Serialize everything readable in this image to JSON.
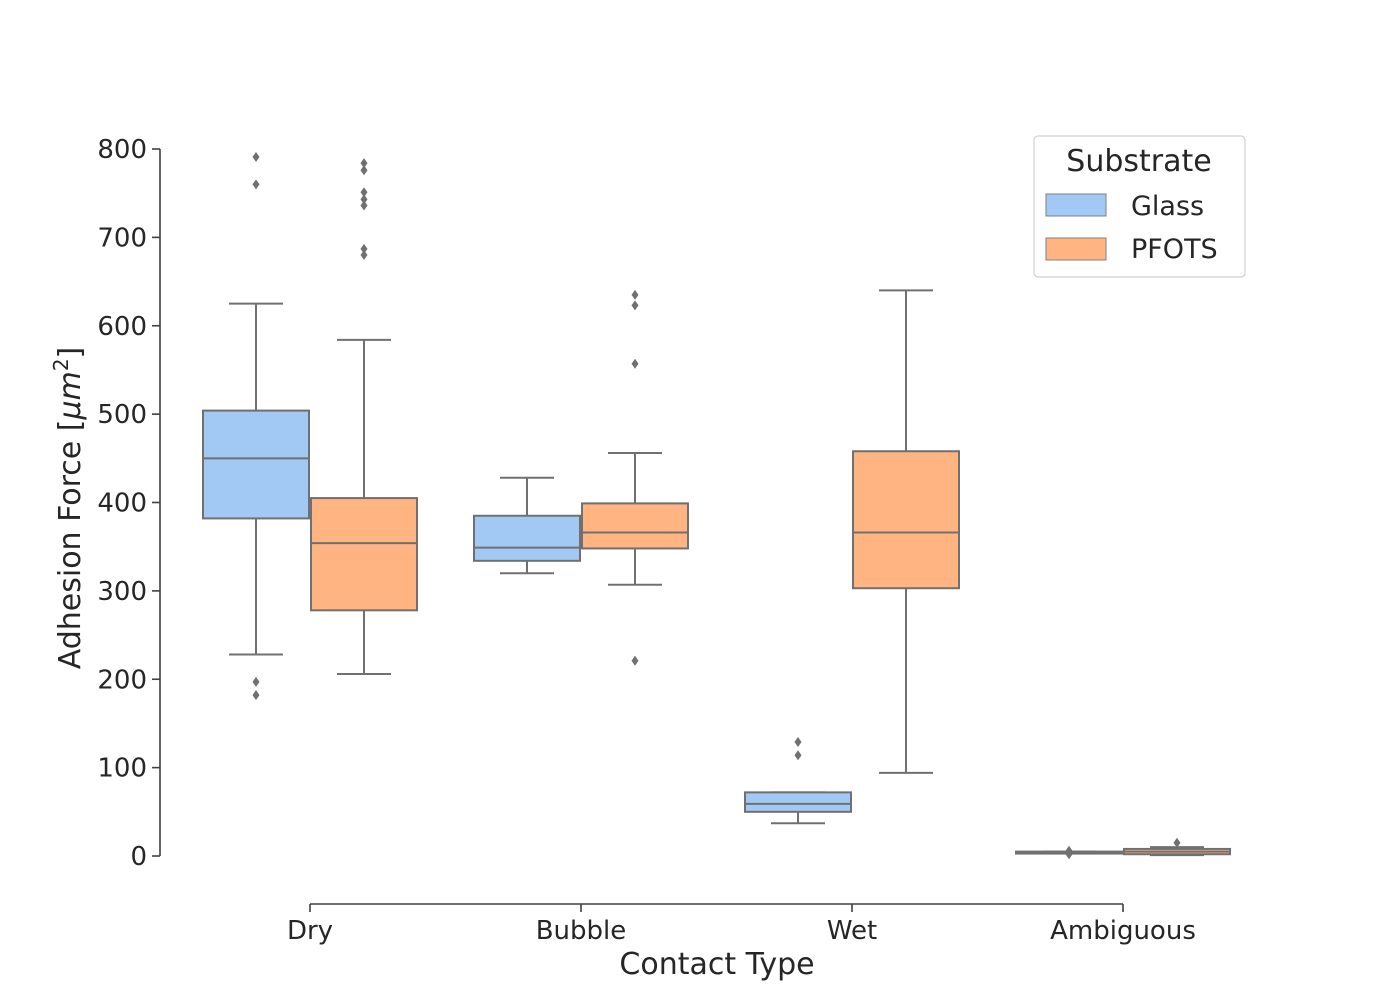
{
  "chart_data": {
    "type": "box",
    "xlabel": "Contact Type",
    "ylabel": "Adhesion Force [μm²]",
    "ylabel_main": "Adhesion Force [",
    "ylabel_unit_base": "μm",
    "ylabel_unit_exp": "2",
    "ylabel_close": "]",
    "ylim": [
      0,
      800
    ],
    "yticks": [
      0,
      100,
      200,
      300,
      400,
      500,
      600,
      700,
      800
    ],
    "categories": [
      "Dry",
      "Bubble",
      "Wet",
      "Ambiguous"
    ],
    "legend": {
      "title": "Substrate",
      "position": "top-right"
    },
    "series": [
      {
        "name": "Glass",
        "color": "#a1c9f4",
        "boxes": [
          {
            "category": "Dry",
            "whislo": 228,
            "q1": 382,
            "median": 450,
            "q3": 504,
            "whishi": 625,
            "fliers": [
              182,
              197,
              760,
              791
            ]
          },
          {
            "category": "Bubble",
            "whislo": 320,
            "q1": 334,
            "median": 349,
            "q3": 385,
            "whishi": 428,
            "fliers": []
          },
          {
            "category": "Wet",
            "whislo": 37,
            "q1": 50,
            "median": 59,
            "q3": 72,
            "whishi": 72,
            "fliers": [
              114,
              129
            ]
          },
          {
            "category": "Ambiguous",
            "whislo": 4,
            "q1": 4,
            "median": 4,
            "q3": 5,
            "whishi": 5,
            "fliers": [
              2,
              6
            ]
          }
        ]
      },
      {
        "name": "PFOTS",
        "color": "#ffb482",
        "boxes": [
          {
            "category": "Dry",
            "whislo": 206,
            "q1": 278,
            "median": 354,
            "q3": 405,
            "whishi": 584,
            "fliers": [
              680,
              687,
              736,
              743,
              751,
              776,
              784
            ]
          },
          {
            "category": "Bubble",
            "whislo": 307,
            "q1": 348,
            "median": 366,
            "q3": 399,
            "whishi": 456,
            "fliers": [
              221,
              557,
              623,
              635
            ]
          },
          {
            "category": "Wet",
            "whislo": 94,
            "q1": 303,
            "median": 366,
            "q3": 458,
            "whishi": 640,
            "fliers": []
          },
          {
            "category": "Ambiguous",
            "whislo": 1,
            "q1": 2,
            "median": 5,
            "q3": 8,
            "whishi": 10,
            "fliers": [
              15
            ]
          }
        ]
      }
    ]
  }
}
